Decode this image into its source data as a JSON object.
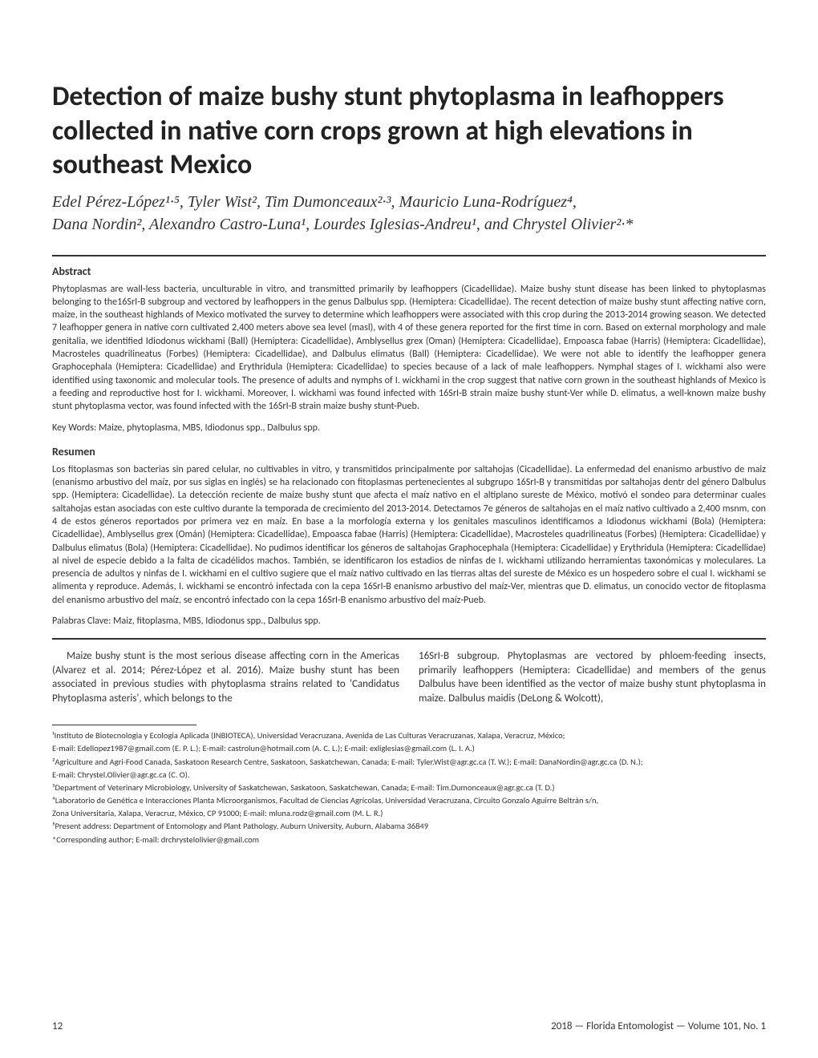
{
  "title": "Detection of maize bushy stunt phytoplasma in leafhoppers collected in native corn crops grown at high elevations in southeast Mexico",
  "authors_line1": "Edel Pérez-López¹·⁵, Tyler Wist², Tim Dumonceaux²·³, Mauricio Luna-Rodríguez⁴,",
  "authors_line2": "Dana Nordin², Alexandro Castro-Luna¹, Lourdes Iglesias-Andreu¹, and Chrystel Olivier²·*",
  "abstract_heading": "Abstract",
  "abstract_text": "Phytoplasmas are wall-less bacteria, unculturable in vitro, and transmitted primarily by leafhoppers (Cicadellidae). Maize bushy stunt disease has been linked to phytoplasmas belonging to the16SrI-B subgroup and vectored by leafhoppers in the genus Dalbulus spp. (Hemiptera: Cicadellidae). The recent detection of maize bushy stunt affecting native corn, maize, in the southeast highlands of Mexico motivated the survey to determine which leafhoppers were associated with this crop during the 2013-2014 growing season. We detected 7 leafhopper genera in native corn cultivated 2,400 meters above sea level (masl), with 4 of these genera reported for the first time in corn. Based on external morphology and male genitalia, we identified Idiodonus wickhami (Ball) (Hemiptera: Cicadellidae), Amblysellus grex (Oman) (Hemiptera: Cicadellidae), Empoasca fabae (Harris) (Hemiptera: Cicadellidae), Macrosteles quadrilineatus (Forbes) (Hemiptera: Cicadellidae), and Dalbulus elimatus (Ball) (Hemiptera: Cicadellidae). We were not able to identify the leafhopper genera Graphocephala (Hemiptera: Cicadellidae) and Erythridula (Hemiptera: Cicadellidae) to species because of a lack of male leafhoppers. Nymphal stages of I. wickhami also were identified using taxonomic and molecular tools. The presence of adults and nymphs of I. wickhami in the crop suggest that native corn grown in the southeast highlands of Mexico is a feeding and reproductive host for I. wickhami. Moreover, I. wickhami was found infected with 16SrI-B strain maize bushy stunt-Ver while D. elimatus, a well-known maize bushy stunt phytoplasma vector, was found infected with the 16SrI-B strain maize bushy stunt-Pueb.",
  "keywords_label": "Key Words:",
  "keywords_text": " Maize, phytoplasma, MBS, Idiodonus spp., Dalbulus spp.",
  "resumen_heading": "Resumen",
  "resumen_text": "Los fitoplasmas son bacterias sin pared celular, no cultivables in vitro, y transmitidos principalmente por saltahojas (Cicadellidae). La enfermedad del enanismo arbustivo de maiz (enanismo arbustivo del maíz, por sus siglas en inglés) se ha relacionado con fitoplasmas pertenecientes al subgrupo 16SrI-B y transmitidas por saltahojas dentr del género Dalbulus spp. (Hemiptera: Cicadellidae). La detección reciente de maize bushy stunt que afecta el maíz nativo en el altiplano sureste de México, motivó el sondeo para determinar cuales saltahojas estan asociadas con este cultivo durante la temporada de crecimiento del 2013-2014. Detectamos 7e géneros de saltahojas en el maíz nativo cultivado a 2,400 msnm, con 4 de estos géneros reportados por primera vez en maíz. En base a la morfología externa y los genitales masculinos identificamos a Idiodonus wickhami (Bola) (Hemiptera: Cicadellidae), Amblysellus grex (Omán) (Hemiptera: Cicadellidae), Empoasca fabae (Harris) (Hemiptera: Cicadellidae), Macrosteles quadrilineatus (Forbes) (Hemiptera: Cicadellidae) y Dalbulus elimatus (Bola) (Hemiptera: Cicadellidae). No pudimos identificar los géneros de saltahojas Graphocephala (Hemiptera: Cicadellidae) y Erythridula (Hemiptera: Cicadellidae) al nivel de especie debido a la falta de cicadélidos machos. También, se identificaron los estadios de ninfas de I. wickhami utilizando herramientas taxonómicas y moleculares. La presencia de adultos y ninfas de I. wickhami en el cultivo sugiere que el maíz nativo cultivado en las tierras altas del sureste de México es un hospedero sobre el cual I. wickhami se alimenta y reproduce. Además, I. wickhami se encontró infectada con la cepa 16SrI-B enanismo arbustivo del maíz-Ver, mientras que D. elimatus, un conocido vector de fitoplasma del enanismo arbustivo del maíz, se encontró infectado con la cepa 16SrI-B enanismo arbustivo del maíz-Pueb.",
  "palabras_label": "Palabras Clave:",
  "palabras_text": " Maiz, fitoplasma, MBS, Idiodonus spp., Dalbulus spp.",
  "body_col1": "Maize bushy stunt is the most serious disease affecting corn in the Americas (Alvarez et al. 2014; Pérez-López et al. 2016). Maize bushy stunt has been associated in previous studies with phytoplasma strains related to 'Candidatus Phytoplasma asteris', which belongs to the",
  "body_col2": "16SrI-B subgroup. Phytoplasmas are vectored by phloem-feeding insects, primarily leafhoppers (Hemiptera: Cicadellidae) and members of the genus Dalbulus have been identified as the vector of maize bushy stunt phytoplasma in maize. Dalbulus maidis (DeLong & Wolcott),",
  "footnotes": {
    "f1": "¹Instituto de Biotecnologia y Ecologia Aplicada (INBIOTECA), Universidad Veracruzana, Avenida de Las Culturas Veracruzanas, Xalapa, Veracruz, México;",
    "f1b": "E-mail: Edellopez1987@gmail.com (E. P. L.); E-mail: castrolun@hotmail.com (A. C. L.); E-mail: exliglesias@gmail.com (L. I. A.)",
    "f2": "²Agriculture and Agri-Food Canada, Saskatoon Research Centre, Saskatoon, Saskatchewan, Canada; E-mail: Tyler.Wist@agr.gc.ca (T. W.); E-mail: DanaNordin@agr.gc.ca (D. N.);",
    "f2b": "E-mail: Chrystel.Olivier@agr.gc.ca (C. O).",
    "f3": "³Department of Veterinary Microbiology, University of Saskatchewan, Saskatoon, Saskatchewan, Canada; E-mail: Tim.Dumonceaux@agr.gc.ca (T. D.)",
    "f4": "⁴Laboratorio de Genética e Interacciones Planta Microorganismos, Facultad de Ciencias Agrícolas, Universidad Veracruzana, Circuito Gonzalo Aguirre Beltrán s/n,",
    "f4b": "Zona Universitaria, Xalapa, Veracruz, México, CP 91000; E-mail: mluna.rodz@gmail.com (M. L. R.)",
    "f5": "⁵Present address: Department of Entomology and Plant Pathology, Auburn University, Auburn, Alabama 36849",
    "f6": "*Corresponding author; E-mail: drchrystelolivier@gmail.com"
  },
  "footer": {
    "page": "12",
    "journal": "2018 — Florida Entomologist — Volume 101, No. 1"
  }
}
